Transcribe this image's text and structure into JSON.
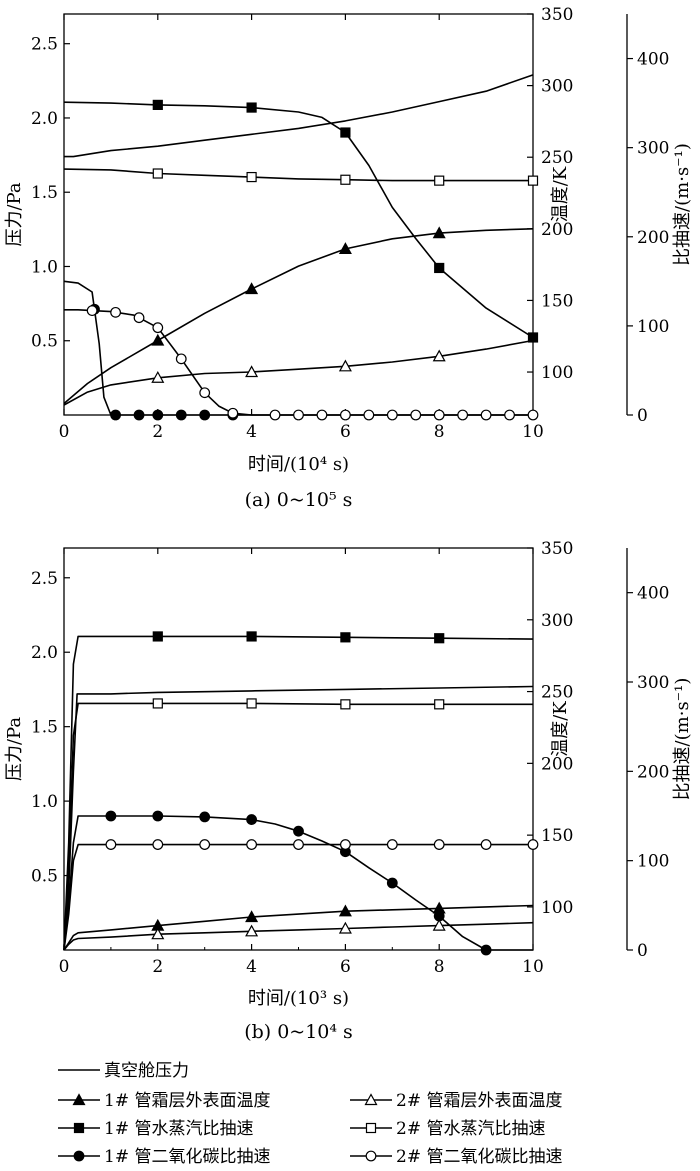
{
  "chart_data": [
    {
      "type": "line",
      "caption": "(a) 0~10⁵ s",
      "xlabel": "时间/(10⁴ s)",
      "xlim": [
        0,
        10
      ],
      "xticks": [
        "0",
        "2",
        "4",
        "6",
        "8",
        "10"
      ],
      "y_left": {
        "label": "压力/Pa",
        "lim": [
          0,
          2.7
        ],
        "ticks": [
          "0.5",
          "1.0",
          "1.5",
          "2.0",
          "2.5"
        ]
      },
      "y_mid": {
        "label": "温度/K",
        "lim": [
          70,
          350
        ],
        "ticks": [
          "100",
          "150",
          "200",
          "250",
          "300",
          "350"
        ]
      },
      "y_right": {
        "label": "比抽速/(m·s⁻¹)",
        "lim": [
          0,
          450
        ],
        "ticks": [
          "0",
          "100",
          "200",
          "300",
          "400"
        ]
      },
      "series": [
        {
          "name": "真空舱压力",
          "axis": "left",
          "marker": "none",
          "x": [
            0,
            0.2,
            0.6,
            1,
            2,
            3,
            4,
            5,
            6,
            7,
            8,
            9,
            10
          ],
          "y": [
            1.74,
            1.74,
            1.76,
            1.78,
            1.81,
            1.85,
            1.89,
            1.93,
            1.98,
            2.04,
            2.11,
            2.18,
            2.29
          ]
        },
        {
          "name": "1# 管霜层外表面温度",
          "axis": "mid",
          "marker": "filled-triangle",
          "x": [
            0,
            0.5,
            1,
            2,
            3,
            4,
            5,
            6,
            7,
            8,
            9,
            10
          ],
          "y": [
            78,
            92,
            103,
            122,
            141,
            158,
            174,
            186,
            193,
            197,
            199,
            200
          ],
          "marked_x": [
            2,
            4,
            6,
            8
          ]
        },
        {
          "name": "2# 管霜层外表面温度",
          "axis": "mid",
          "marker": "open-triangle",
          "x": [
            0,
            0.5,
            1,
            2,
            3,
            4,
            5,
            6,
            7,
            8,
            9,
            10
          ],
          "y": [
            77,
            86,
            91,
            96,
            99,
            100,
            102,
            104,
            107,
            111,
            116,
            122
          ],
          "marked_x": [
            2,
            4,
            6,
            8
          ]
        },
        {
          "name": "1# 管水蒸汽比抽速",
          "axis": "right",
          "marker": "filled-square",
          "x": [
            0,
            1,
            2,
            3,
            4,
            5,
            5.5,
            6,
            6.5,
            7,
            7.5,
            8,
            9,
            10
          ],
          "y": [
            351,
            350,
            348,
            347,
            345,
            340,
            334,
            317,
            280,
            233,
            198,
            165,
            120,
            87
          ],
          "marked_x": [
            2,
            4,
            6,
            8,
            10
          ]
        },
        {
          "name": "2# 管水蒸汽比抽速",
          "axis": "right",
          "marker": "open-square",
          "x": [
            0,
            1,
            2,
            3,
            4,
            5,
            6,
            7,
            8,
            9,
            10
          ],
          "y": [
            276,
            275,
            271,
            269,
            267,
            265,
            264,
            263,
            263,
            263,
            263
          ],
          "marked_x": [
            2,
            4,
            6,
            8,
            10
          ]
        },
        {
          "name": "1# 管二氧化碳比抽速",
          "axis": "right",
          "marker": "filled-circle",
          "x": [
            0,
            0.3,
            0.6,
            0.75,
            0.85,
            1,
            1.5,
            2,
            3,
            4,
            5,
            6,
            7,
            8,
            9,
            10
          ],
          "y": [
            150,
            148,
            138,
            80,
            20,
            0,
            0,
            0,
            0,
            0,
            0,
            0,
            0,
            0,
            0,
            0
          ],
          "marked_x": [
            0.65,
            1.1,
            1.6,
            2,
            2.5,
            3,
            3.6
          ]
        },
        {
          "name": "2# 管二氧化碳比抽速",
          "axis": "right",
          "marker": "open-circle",
          "x": [
            0,
            0.3,
            1,
            1.5,
            2,
            2.5,
            3,
            3.3,
            3.6,
            4,
            5,
            6,
            7,
            8,
            9,
            10
          ],
          "y": [
            118,
            118,
            116,
            112,
            98,
            63,
            25,
            10,
            2,
            0,
            0,
            0,
            0,
            0,
            0,
            0
          ],
          "marked_x": [
            0.6,
            1.1,
            1.6,
            2,
            2.5,
            3,
            3.6,
            4.5,
            5,
            5.5,
            6,
            6.5,
            7,
            7.5,
            8,
            8.5,
            9,
            9.5,
            10
          ]
        }
      ]
    },
    {
      "type": "line",
      "caption": "(b) 0~10⁴ s",
      "xlabel": "时间/(10³ s)",
      "xlim": [
        0,
        10
      ],
      "xticks": [
        "0",
        "2",
        "4",
        "6",
        "8",
        "10"
      ],
      "y_left": {
        "label": "压力/Pa",
        "lim": [
          0,
          2.7
        ],
        "ticks": [
          "0.5",
          "1.0",
          "1.5",
          "2.0",
          "2.5"
        ]
      },
      "y_mid": {
        "label": "温度/K",
        "lim": [
          70,
          350
        ],
        "ticks": [
          "100",
          "150",
          "200",
          "250",
          "300",
          "350"
        ]
      },
      "y_right": {
        "label": "比抽速/(m·s⁻¹)",
        "lim": [
          0,
          450
        ],
        "ticks": [
          "0",
          "100",
          "200",
          "300",
          "400"
        ]
      },
      "series": [
        {
          "name": "真空舱压力",
          "axis": "left",
          "marker": "none",
          "x": [
            0,
            0.1,
            0.2,
            0.28,
            0.4,
            1,
            2,
            4,
            6,
            8,
            10
          ],
          "y": [
            0.02,
            0.4,
            1.2,
            1.72,
            1.72,
            1.72,
            1.73,
            1.74,
            1.75,
            1.76,
            1.77
          ]
        },
        {
          "name": "1# 管霜层外表面温度",
          "axis": "mid",
          "marker": "filled-triangle",
          "x": [
            0,
            0.1,
            0.2,
            0.3,
            1,
            2,
            3,
            4,
            5,
            6,
            7,
            8,
            9,
            10
          ],
          "y": [
            70,
            75,
            80,
            82,
            84,
            87,
            90,
            93,
            95,
            97,
            98,
            99,
            100,
            101
          ],
          "marked_x": [
            2,
            4,
            6,
            8
          ]
        },
        {
          "name": "2# 管霜层外表面温度",
          "axis": "mid",
          "marker": "open-triangle",
          "x": [
            0,
            0.1,
            0.2,
            0.3,
            1,
            2,
            3,
            4,
            5,
            6,
            7,
            8,
            9,
            10
          ],
          "y": [
            70,
            74,
            77,
            78,
            79,
            81,
            82,
            83,
            84,
            85,
            86,
            87,
            88,
            89
          ],
          "marked_x": [
            2,
            4,
            6,
            8
          ]
        },
        {
          "name": "1# 管水蒸汽比抽速",
          "axis": "right",
          "marker": "filled-square",
          "x": [
            0,
            0.1,
            0.2,
            0.3,
            1,
            2,
            4,
            6,
            8,
            10
          ],
          "y": [
            0,
            120,
            320,
            351,
            351,
            351,
            351,
            350,
            349,
            348
          ],
          "marked_x": [
            2,
            4,
            6,
            8
          ]
        },
        {
          "name": "2# 管水蒸汽比抽速",
          "axis": "right",
          "marker": "open-square",
          "x": [
            0,
            0.1,
            0.2,
            0.3,
            1,
            2,
            4,
            6,
            8,
            10
          ],
          "y": [
            0,
            90,
            240,
            276,
            276,
            276,
            276,
            275,
            275,
            275
          ],
          "marked_x": [
            2,
            4,
            6,
            8
          ]
        },
        {
          "name": "1# 管二氧化碳比抽速",
          "axis": "right",
          "marker": "filled-circle",
          "x": [
            0,
            0.1,
            0.2,
            0.3,
            1,
            2,
            3,
            4,
            4.5,
            5,
            5.5,
            6,
            6.5,
            7,
            7.5,
            8,
            8.5,
            9,
            9.5,
            10
          ],
          "y": [
            0,
            50,
            120,
            150,
            150,
            150,
            149,
            146,
            141,
            133,
            122,
            110,
            92,
            75,
            56,
            38,
            15,
            0,
            0,
            0
          ],
          "marked_x": [
            1,
            2,
            3,
            4,
            5,
            6,
            7,
            8,
            9
          ]
        },
        {
          "name": "2# 管二氧化碳比抽速",
          "axis": "right",
          "marker": "open-circle",
          "x": [
            0,
            0.1,
            0.2,
            0.3,
            1,
            2,
            4,
            6,
            8,
            10
          ],
          "y": [
            0,
            40,
            100,
            118,
            118,
            118,
            118,
            118,
            118,
            118
          ],
          "marked_x": [
            1,
            2,
            3,
            4,
            5,
            6,
            7,
            8,
            9,
            10
          ]
        }
      ]
    }
  ],
  "legend": [
    {
      "label": "真空舱压力",
      "marker": "none"
    },
    {
      "label": "1# 管霜层外表面温度",
      "marker": "filled-triangle"
    },
    {
      "label": "2# 管霜层外表面温度",
      "marker": "open-triangle"
    },
    {
      "label": "1# 管水蒸汽比抽速",
      "marker": "filled-square"
    },
    {
      "label": "2# 管水蒸汽比抽速",
      "marker": "open-square"
    },
    {
      "label": "1# 管二氧化碳比抽速",
      "marker": "filled-circle"
    },
    {
      "label": "2# 管二氧化碳比抽速",
      "marker": "open-circle"
    }
  ]
}
